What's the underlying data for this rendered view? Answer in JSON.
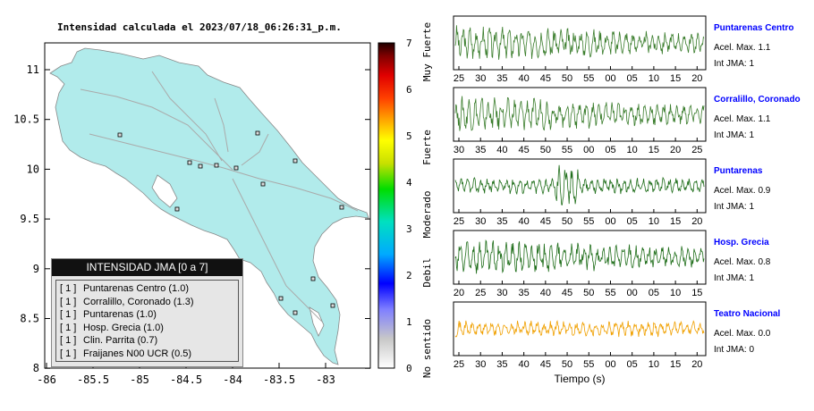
{
  "map": {
    "title": "Intensidad calculada el 2023/07/18_06:26:31_p.m.",
    "x_ticks": [
      "-86",
      "-85.5",
      "-85",
      "-84.5",
      "-84",
      "-83.5",
      "-83"
    ],
    "y_ticks": [
      "11",
      "10.5",
      "10",
      "9.5",
      "9",
      "8.5",
      "8"
    ],
    "land_color": "#b1ebeb",
    "colorbar": {
      "ticks": [
        "7",
        "6",
        "5",
        "4",
        "3",
        "2",
        "1",
        "0"
      ],
      "labels": [
        "Muy Fuerte",
        "Fuerte",
        "Moderado",
        "Debil",
        "No sentido"
      ]
    }
  },
  "legend": {
    "title": "INTENSIDAD JMA [0 a 7]",
    "rows": [
      {
        "idx": "[ 1 ]",
        "label": "Puntarenas Centro (1.0)"
      },
      {
        "idx": "[ 1 ]",
        "label": "Corralillo, Coronado (1.3)"
      },
      {
        "idx": "[ 1 ]",
        "label": "Puntarenas (1.0)"
      },
      {
        "idx": "[ 1 ]",
        "label": "Hosp. Grecia (1.0)"
      },
      {
        "idx": "[ 1 ]",
        "label": "Clin. Parrita (0.7)"
      },
      {
        "idx": "[ 1 ]",
        "label": "Fraijanes N00 UCR (0.5)"
      }
    ]
  },
  "chart_data": [
    {
      "type": "line",
      "station": "Puntarenas Centro",
      "accel_label": "Acel. Max. 1.1",
      "int_label": "Int JMA: 1",
      "color": "#3a7d2c",
      "x_ticks": [
        "25",
        "30",
        "35",
        "40",
        "45",
        "50",
        "55",
        "00",
        "05",
        "10",
        "15",
        "20"
      ]
    },
    {
      "type": "line",
      "station": "Corralillo, Coronado",
      "accel_label": "Acel. Max. 1.1",
      "int_label": "Int JMA: 1",
      "color": "#3a7d2c",
      "x_ticks": [
        "30",
        "35",
        "40",
        "45",
        "50",
        "55",
        "00",
        "05",
        "10",
        "15",
        "20",
        "25"
      ]
    },
    {
      "type": "line",
      "station": "Puntarenas",
      "accel_label": "Acel. Max. 0.9",
      "int_label": "Int JMA: 1",
      "color": "#1f6e1a",
      "x_ticks": [
        "25",
        "30",
        "35",
        "40",
        "45",
        "50",
        "55",
        "00",
        "05",
        "10",
        "15",
        "20"
      ]
    },
    {
      "type": "line",
      "station": "Hosp. Grecia",
      "accel_label": "Acel. Max. 0.8",
      "int_label": "Int JMA: 1",
      "color": "#1f6e1a",
      "x_ticks": [
        "20",
        "25",
        "30",
        "35",
        "40",
        "45",
        "50",
        "55",
        "00",
        "05",
        "10",
        "15"
      ]
    },
    {
      "type": "line",
      "station": "Teatro Nacional",
      "accel_label": "Acel. Max. 0.0",
      "int_label": "Int JMA: 0",
      "color": "#f0a000",
      "x_ticks": [
        "25",
        "30",
        "35",
        "40",
        "45",
        "50",
        "55",
        "00",
        "05",
        "10",
        "15",
        "20"
      ]
    }
  ],
  "waves": {
    "xlabel": "Tiempo (s)",
    "station_color": "#0000ff"
  }
}
